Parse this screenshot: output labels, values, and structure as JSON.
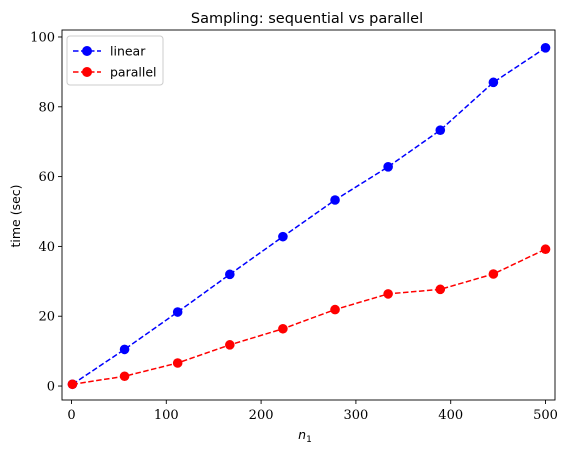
{
  "chart_data": {
    "type": "line",
    "title": "Sampling: sequential vs parallel",
    "xlabel": "n",
    "xlabel_subscript": "1",
    "ylabel": "time (sec)",
    "xlim": [
      -10,
      510
    ],
    "ylim": [
      -4,
      102
    ],
    "xticks": [
      0,
      100,
      200,
      300,
      400,
      500
    ],
    "yticks": [
      0,
      20,
      40,
      60,
      80,
      100
    ],
    "grid": false,
    "legend_position": "upper-left",
    "series": [
      {
        "name": "linear",
        "color": "#0000ff",
        "marker": "circle",
        "linestyle": "dashed",
        "x": [
          1,
          56,
          112,
          167,
          223,
          278,
          334,
          389,
          445,
          500
        ],
        "y": [
          0.5,
          10.5,
          21.2,
          32.0,
          42.8,
          53.3,
          62.8,
          73.3,
          87.0,
          96.9
        ]
      },
      {
        "name": "parallel",
        "color": "#ff0000",
        "marker": "circle",
        "linestyle": "dashed",
        "x": [
          1,
          56,
          112,
          167,
          223,
          278,
          334,
          389,
          445,
          500
        ],
        "y": [
          0.5,
          2.8,
          6.6,
          11.8,
          16.4,
          21.9,
          26.4,
          27.7,
          32.1,
          39.2
        ]
      }
    ]
  }
}
